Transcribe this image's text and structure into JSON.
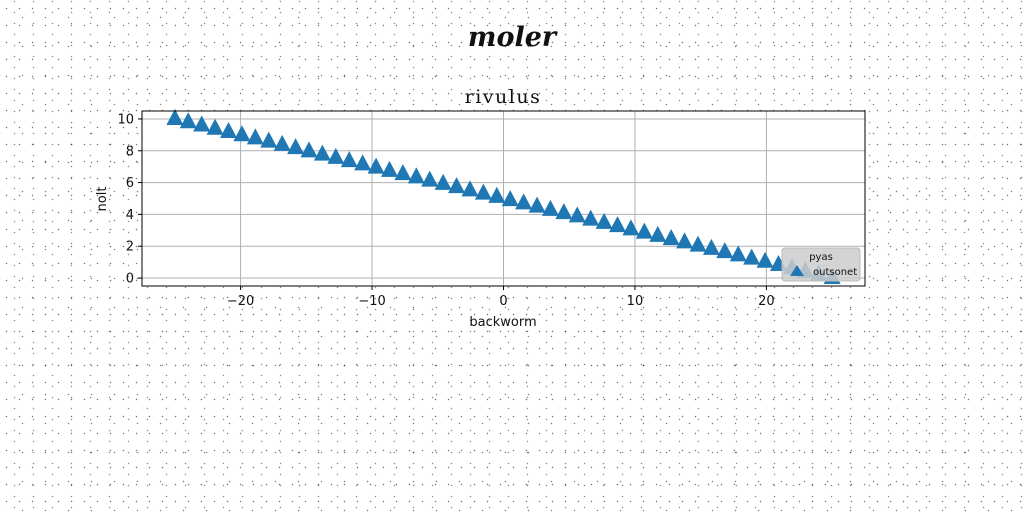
{
  "figure_title": "moler",
  "chart_data": {
    "type": "scatter",
    "title": "rivulus",
    "xlabel": "backworm",
    "ylabel": "nolt",
    "xlim": [
      -27.5,
      27.5
    ],
    "ylim": [
      -0.5,
      10.5
    ],
    "xticks": [
      -20,
      -10,
      0,
      10,
      20
    ],
    "xtick_labels": [
      "−20",
      "−10",
      "0",
      "10",
      "20"
    ],
    "yticks": [
      0,
      2,
      4,
      6,
      8,
      10
    ],
    "ytick_labels": [
      "0",
      "2",
      "4",
      "6",
      "8",
      "10"
    ],
    "grid": true,
    "legend": {
      "title": "pyas",
      "placement": "lower-right"
    },
    "marker": "triangle-up",
    "series": [
      {
        "name": "outsonet",
        "color": "#1f77b4",
        "x_start": -25,
        "x_end": 25,
        "y_start": 10,
        "y_end": 0,
        "n_points": 50
      }
    ]
  }
}
